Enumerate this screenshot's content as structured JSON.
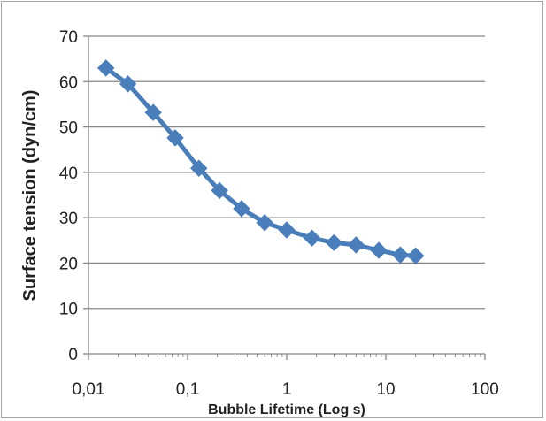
{
  "chart_data": {
    "type": "line",
    "title": "",
    "xlabel": "Bubble Lifetime (Log s)",
    "ylabel": "Surface tension (dyn/cm)",
    "x_scale": "log",
    "xlim": [
      0.01,
      100
    ],
    "ylim": [
      0,
      70
    ],
    "x_ticks": [
      0.01,
      0.1,
      1,
      10,
      100
    ],
    "x_tick_labels": [
      "0,01",
      "0,1",
      "1",
      "10",
      "100"
    ],
    "y_ticks": [
      0,
      10,
      20,
      30,
      40,
      50,
      60,
      70
    ],
    "y_tick_labels": [
      "0",
      "10",
      "20",
      "30",
      "40",
      "50",
      "60",
      "70"
    ],
    "grid": "horizontal",
    "legend": "none",
    "series": [
      {
        "color": "#4a7ebb",
        "marker": "diamond",
        "x": [
          0.015,
          0.025,
          0.045,
          0.075,
          0.13,
          0.21,
          0.35,
          0.6,
          1.0,
          1.8,
          3.0,
          5.0,
          8.5,
          14,
          20
        ],
        "y": [
          63,
          59.5,
          53.2,
          47.6,
          40.9,
          36,
          32,
          28.9,
          27.3,
          25.5,
          24.5,
          24,
          22.8,
          21.8,
          21.6
        ]
      }
    ]
  }
}
